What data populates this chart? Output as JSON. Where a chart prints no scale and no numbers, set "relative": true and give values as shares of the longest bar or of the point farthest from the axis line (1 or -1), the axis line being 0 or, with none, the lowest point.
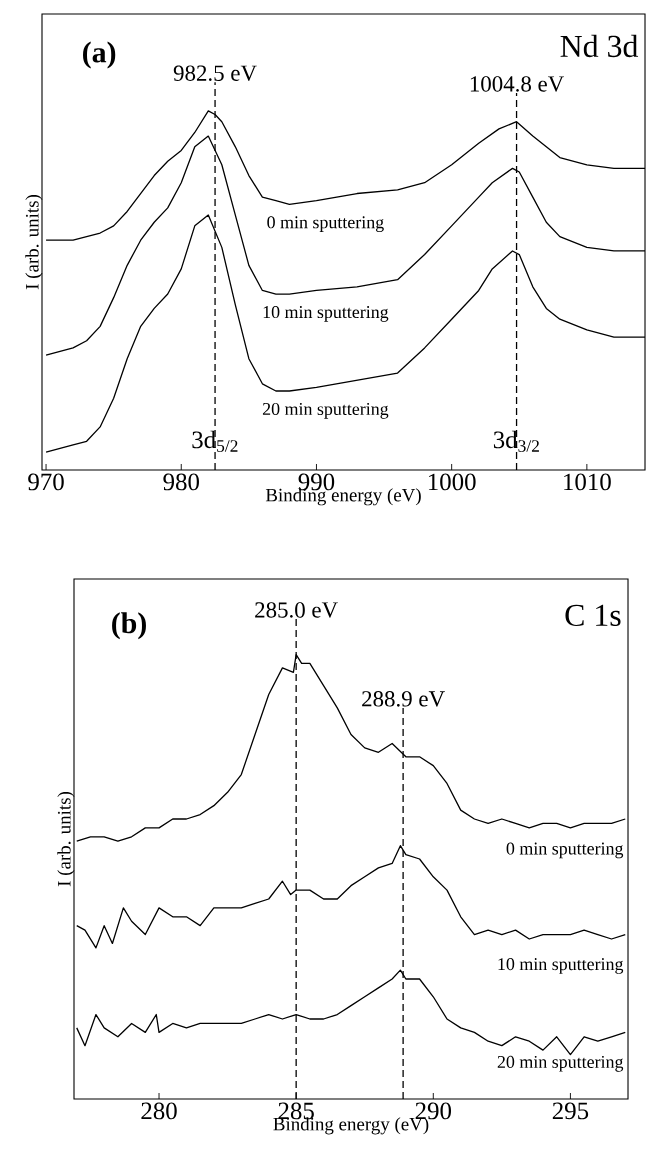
{
  "chart_data": [
    {
      "type": "line",
      "relative": true,
      "xlabel": "Binding energy (eV)",
      "ylabel": "I (arb. units)",
      "xlim": [
        969.7,
        1014.3
      ],
      "xticks": [
        970,
        980,
        990,
        1000,
        1010
      ],
      "series": [
        {
          "name": "0 min sputtering",
          "color": "#000000",
          "x": [
            970,
            972,
            974,
            975,
            976,
            977,
            978,
            979,
            980,
            981,
            982,
            982.5,
            983,
            984,
            985,
            986,
            987,
            988,
            990,
            993,
            996,
            998,
            1000,
            1002,
            1003.5,
            1004.8,
            1006,
            1007,
            1008,
            1010,
            1012,
            1014.3
          ],
          "values": [
            0.64,
            0.64,
            0.66,
            0.68,
            0.72,
            0.77,
            0.82,
            0.86,
            0.89,
            0.94,
            1.0,
            0.99,
            0.97,
            0.9,
            0.82,
            0.76,
            0.75,
            0.74,
            0.75,
            0.77,
            0.78,
            0.8,
            0.85,
            0.91,
            0.95,
            0.97,
            0.93,
            0.9,
            0.87,
            0.85,
            0.84,
            0.84
          ]
        },
        {
          "name": "10 min sputtering",
          "color": "#000000",
          "x": [
            970,
            972,
            973,
            974,
            975,
            976,
            977,
            978,
            979,
            980,
            981,
            982,
            983,
            984,
            985,
            986,
            987,
            988,
            990,
            993,
            996,
            998,
            1000,
            1002,
            1003,
            1004.5,
            1005,
            1006,
            1007,
            1008,
            1010,
            1012,
            1014.3
          ],
          "values": [
            0.32,
            0.34,
            0.36,
            0.4,
            0.48,
            0.57,
            0.64,
            0.69,
            0.73,
            0.8,
            0.9,
            0.93,
            0.85,
            0.71,
            0.57,
            0.5,
            0.49,
            0.49,
            0.5,
            0.51,
            0.53,
            0.6,
            0.68,
            0.76,
            0.8,
            0.84,
            0.83,
            0.76,
            0.69,
            0.65,
            0.62,
            0.61,
            0.61
          ]
        },
        {
          "name": "20 min sputtering",
          "color": "#000000",
          "x": [
            970,
            972,
            973,
            974,
            975,
            976,
            977,
            978,
            979,
            980,
            981,
            982,
            983,
            984,
            985,
            986,
            987,
            988,
            990,
            993,
            996,
            998,
            1000,
            1002,
            1003,
            1004.5,
            1005,
            1006,
            1007,
            1008,
            1010,
            1012,
            1014.3
          ],
          "values": [
            0.05,
            0.07,
            0.08,
            0.12,
            0.2,
            0.31,
            0.4,
            0.45,
            0.49,
            0.56,
            0.68,
            0.71,
            0.62,
            0.46,
            0.31,
            0.24,
            0.22,
            0.22,
            0.23,
            0.25,
            0.27,
            0.34,
            0.42,
            0.5,
            0.56,
            0.61,
            0.6,
            0.51,
            0.45,
            0.42,
            0.39,
            0.37,
            0.37
          ]
        }
      ],
      "ref_lines": [
        {
          "axis": "x",
          "value": 982.5,
          "label": "982.5 eV",
          "line_style": "dashed"
        },
        {
          "axis": "x",
          "value": 1004.8,
          "label": "1004.8 eV",
          "line_style": "dashed"
        }
      ],
      "annotations": [
        "(a)",
        "Nd 3d",
        {
          "text": "3d$_{5/2}$",
          "x": 982.5,
          "y": 0.08
        },
        {
          "text": "3d$_{3/2}$",
          "x": 1004.8,
          "y": 0.08
        }
      ]
    },
    {
      "type": "line",
      "relative": true,
      "xlabel": "Binding energy (eV)",
      "ylabel": "I (arb. units)",
      "xlim": [
        276.9,
        297.1
      ],
      "xticks": [
        280,
        285,
        290,
        295
      ],
      "series": [
        {
          "name": "0 min sputtering",
          "color": "#000000",
          "x": [
            277.0,
            277.5,
            278.0,
            278.5,
            279.0,
            279.5,
            280.0,
            280.5,
            281.0,
            281.5,
            282.0,
            282.5,
            283.0,
            283.5,
            284.0,
            284.5,
            284.9,
            285.0,
            285.2,
            285.5,
            286.0,
            286.5,
            287.0,
            287.5,
            288.0,
            288.5,
            289.0,
            289.5,
            290.0,
            290.5,
            291.0,
            291.5,
            292.0,
            292.5,
            293.0,
            293.5,
            294.0,
            294.5,
            295.0,
            295.5,
            296.0,
            296.5,
            297.0
          ],
          "values": [
            0.58,
            0.59,
            0.59,
            0.58,
            0.59,
            0.61,
            0.61,
            0.63,
            0.63,
            0.64,
            0.66,
            0.69,
            0.73,
            0.82,
            0.91,
            0.97,
            0.96,
            1.0,
            0.98,
            0.98,
            0.93,
            0.88,
            0.82,
            0.79,
            0.78,
            0.8,
            0.77,
            0.77,
            0.75,
            0.71,
            0.65,
            0.63,
            0.62,
            0.63,
            0.62,
            0.61,
            0.62,
            0.62,
            0.61,
            0.62,
            0.62,
            0.62,
            0.63
          ]
        },
        {
          "name": "10 min sputtering",
          "color": "#000000",
          "x": [
            277.0,
            277.3,
            277.7,
            278.0,
            278.3,
            278.7,
            279.0,
            279.5,
            280.0,
            280.5,
            281.0,
            281.5,
            282.0,
            282.5,
            283.0,
            283.5,
            284.0,
            284.5,
            284.8,
            285.0,
            285.5,
            286.0,
            286.5,
            287.0,
            287.5,
            288.0,
            288.5,
            288.8,
            289.0,
            289.5,
            290.0,
            290.5,
            291.0,
            291.5,
            292.0,
            292.5,
            293.0,
            293.5,
            294.0,
            294.5,
            295.0,
            295.5,
            296.0,
            296.5,
            297.0
          ],
          "values": [
            0.39,
            0.38,
            0.34,
            0.39,
            0.35,
            0.43,
            0.4,
            0.37,
            0.43,
            0.41,
            0.41,
            0.39,
            0.43,
            0.43,
            0.43,
            0.44,
            0.45,
            0.49,
            0.46,
            0.47,
            0.47,
            0.45,
            0.45,
            0.48,
            0.5,
            0.52,
            0.53,
            0.57,
            0.55,
            0.54,
            0.5,
            0.47,
            0.41,
            0.37,
            0.38,
            0.37,
            0.38,
            0.36,
            0.37,
            0.37,
            0.37,
            0.38,
            0.37,
            0.36,
            0.37
          ]
        },
        {
          "name": "20 min sputtering",
          "color": "#000000",
          "x": [
            277.0,
            277.3,
            277.7,
            278.0,
            278.5,
            279.0,
            279.5,
            279.9,
            280.0,
            280.5,
            281.0,
            281.5,
            282.0,
            282.5,
            283.0,
            283.5,
            284.0,
            284.5,
            285.0,
            285.5,
            286.0,
            286.5,
            287.0,
            287.5,
            288.0,
            288.5,
            288.8,
            289.0,
            289.5,
            290.0,
            290.5,
            291.0,
            291.5,
            292.0,
            292.5,
            293.0,
            293.5,
            294.0,
            294.5,
            295.0,
            295.5,
            296.0,
            296.5,
            297.0
          ],
          "values": [
            0.16,
            0.12,
            0.19,
            0.16,
            0.14,
            0.17,
            0.15,
            0.19,
            0.15,
            0.17,
            0.16,
            0.17,
            0.17,
            0.17,
            0.17,
            0.18,
            0.19,
            0.18,
            0.19,
            0.18,
            0.18,
            0.19,
            0.21,
            0.23,
            0.25,
            0.27,
            0.29,
            0.27,
            0.27,
            0.23,
            0.18,
            0.16,
            0.15,
            0.13,
            0.12,
            0.14,
            0.13,
            0.11,
            0.14,
            0.1,
            0.14,
            0.13,
            0.14,
            0.15
          ]
        }
      ],
      "ref_lines": [
        {
          "axis": "x",
          "value": 285.0,
          "label": "285.0 eV",
          "line_style": "dashed"
        },
        {
          "axis": "x",
          "value": 288.9,
          "label": "288.9 eV",
          "line_style": "dashed"
        }
      ],
      "annotations": [
        "(b)",
        "C 1s"
      ]
    }
  ]
}
